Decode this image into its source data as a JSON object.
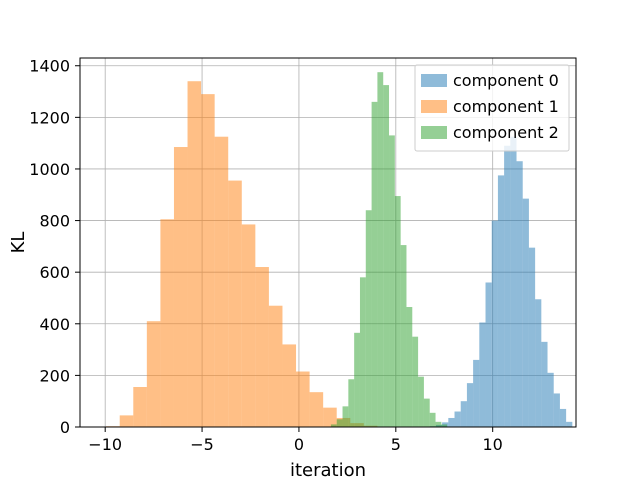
{
  "chart_data": {
    "type": "histogram",
    "xlabel": "iteration",
    "ylabel": "KL",
    "xlim": [
      -11.3,
      14.3
    ],
    "ylim": [
      0,
      1430
    ],
    "grid": true,
    "legend_position": "top-right",
    "x_ticks": [
      -10,
      -5,
      0,
      5,
      10
    ],
    "x_tick_labels": [
      "−10",
      "−5",
      "0",
      "5",
      "10"
    ],
    "y_ticks": [
      0,
      200,
      400,
      600,
      800,
      1000,
      1200,
      1400
    ],
    "y_tick_labels": [
      "0",
      "200",
      "400",
      "600",
      "800",
      "1000",
      "1200",
      "1400"
    ],
    "series": [
      {
        "name": "component 0",
        "color": "#1f77b4",
        "alpha": 0.5,
        "bins": [
          {
            "x0": 6.75,
            "x1": 7.07,
            "count": 3
          },
          {
            "x0": 7.07,
            "x1": 7.39,
            "count": 8
          },
          {
            "x0": 7.39,
            "x1": 7.71,
            "count": 18
          },
          {
            "x0": 7.71,
            "x1": 8.03,
            "count": 35
          },
          {
            "x0": 8.03,
            "x1": 8.35,
            "count": 60
          },
          {
            "x0": 8.35,
            "x1": 8.67,
            "count": 100
          },
          {
            "x0": 8.67,
            "x1": 8.99,
            "count": 170
          },
          {
            "x0": 8.99,
            "x1": 9.31,
            "count": 260
          },
          {
            "x0": 9.31,
            "x1": 9.63,
            "count": 405
          },
          {
            "x0": 9.63,
            "x1": 9.95,
            "count": 560
          },
          {
            "x0": 9.95,
            "x1": 10.27,
            "count": 800
          },
          {
            "x0": 10.27,
            "x1": 10.59,
            "count": 975
          },
          {
            "x0": 10.59,
            "x1": 10.91,
            "count": 1090
          },
          {
            "x0": 10.91,
            "x1": 11.23,
            "count": 1125
          },
          {
            "x0": 11.23,
            "x1": 11.55,
            "count": 1030
          },
          {
            "x0": 11.55,
            "x1": 11.87,
            "count": 885
          },
          {
            "x0": 11.87,
            "x1": 12.19,
            "count": 695
          },
          {
            "x0": 12.19,
            "x1": 12.51,
            "count": 495
          },
          {
            "x0": 12.51,
            "x1": 12.83,
            "count": 330
          },
          {
            "x0": 12.83,
            "x1": 13.15,
            "count": 210
          },
          {
            "x0": 13.15,
            "x1": 13.47,
            "count": 130
          },
          {
            "x0": 13.47,
            "x1": 13.79,
            "count": 70
          },
          {
            "x0": 13.79,
            "x1": 14.11,
            "count": 20
          }
        ]
      },
      {
        "name": "component 1",
        "color": "#ff7f0e",
        "alpha": 0.5,
        "bins": [
          {
            "x0": -9.95,
            "x1": -9.25,
            "count": 3
          },
          {
            "x0": -9.25,
            "x1": -8.55,
            "count": 45
          },
          {
            "x0": -8.55,
            "x1": -7.85,
            "count": 155
          },
          {
            "x0": -7.85,
            "x1": -7.15,
            "count": 410
          },
          {
            "x0": -7.15,
            "x1": -6.45,
            "count": 805
          },
          {
            "x0": -6.45,
            "x1": -5.75,
            "count": 1085
          },
          {
            "x0": -5.75,
            "x1": -5.05,
            "count": 1340
          },
          {
            "x0": -5.05,
            "x1": -4.35,
            "count": 1290
          },
          {
            "x0": -4.35,
            "x1": -3.65,
            "count": 1125
          },
          {
            "x0": -3.65,
            "x1": -2.95,
            "count": 955
          },
          {
            "x0": -2.95,
            "x1": -2.25,
            "count": 785
          },
          {
            "x0": -2.25,
            "x1": -1.55,
            "count": 620
          },
          {
            "x0": -1.55,
            "x1": -0.85,
            "count": 470
          },
          {
            "x0": -0.85,
            "x1": -0.15,
            "count": 320
          },
          {
            "x0": -0.15,
            "x1": 0.55,
            "count": 215
          },
          {
            "x0": 0.55,
            "x1": 1.25,
            "count": 135
          },
          {
            "x0": 1.25,
            "x1": 1.95,
            "count": 75
          },
          {
            "x0": 1.95,
            "x1": 2.65,
            "count": 35
          },
          {
            "x0": 2.65,
            "x1": 3.35,
            "count": 15
          },
          {
            "x0": 3.35,
            "x1": 4.05,
            "count": 5
          }
        ]
      },
      {
        "name": "component 2",
        "color": "#2ca02c",
        "alpha": 0.5,
        "bins": [
          {
            "x0": 1.65,
            "x1": 1.95,
            "count": 10
          },
          {
            "x0": 1.95,
            "x1": 2.25,
            "count": 30
          },
          {
            "x0": 2.25,
            "x1": 2.55,
            "count": 80
          },
          {
            "x0": 2.55,
            "x1": 2.85,
            "count": 185
          },
          {
            "x0": 2.85,
            "x1": 3.15,
            "count": 365
          },
          {
            "x0": 3.15,
            "x1": 3.45,
            "count": 580
          },
          {
            "x0": 3.45,
            "x1": 3.75,
            "count": 840
          },
          {
            "x0": 3.75,
            "x1": 4.05,
            "count": 1260
          },
          {
            "x0": 4.05,
            "x1": 4.35,
            "count": 1375
          },
          {
            "x0": 4.35,
            "x1": 4.65,
            "count": 1325
          },
          {
            "x0": 4.65,
            "x1": 4.95,
            "count": 1130
          },
          {
            "x0": 4.95,
            "x1": 5.25,
            "count": 895
          },
          {
            "x0": 5.25,
            "x1": 5.55,
            "count": 705
          },
          {
            "x0": 5.55,
            "x1": 5.85,
            "count": 465
          },
          {
            "x0": 5.85,
            "x1": 6.15,
            "count": 350
          },
          {
            "x0": 6.15,
            "x1": 6.45,
            "count": 195
          },
          {
            "x0": 6.45,
            "x1": 6.75,
            "count": 110
          },
          {
            "x0": 6.75,
            "x1": 7.05,
            "count": 55
          },
          {
            "x0": 7.05,
            "x1": 7.35,
            "count": 20
          },
          {
            "x0": 7.35,
            "x1": 7.65,
            "count": 10
          }
        ]
      }
    ]
  }
}
